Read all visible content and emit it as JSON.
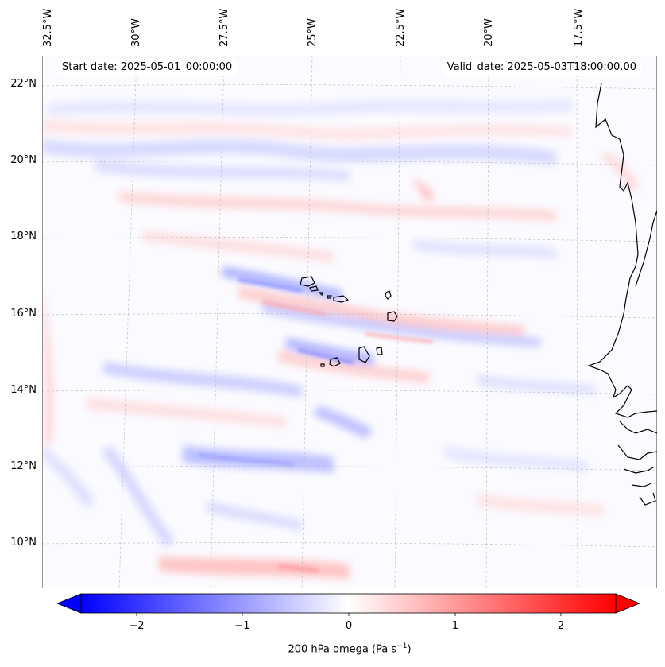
{
  "map": {
    "start_date_text": "Start date: 2025-05-01_00:00:00",
    "valid_date_text": "Valid_date: 2025-05-03T18:00:00.00",
    "lon_labels": [
      "32.5°W",
      "30°W",
      "27.5°W",
      "25°W",
      "22.5°W",
      "20°W",
      "17.5°W"
    ],
    "lat_labels": [
      "22°N",
      "20°N",
      "18°N",
      "16°N",
      "14°N",
      "12°N",
      "10°N"
    ],
    "gridlines": true,
    "variable": "200 hPa omega",
    "colormap": "bwr",
    "colors": {
      "negative": "#0000ff",
      "positive": "#ff0000",
      "zero": "#ffffff",
      "coast": "#000000",
      "grid": "#b8b8b8"
    }
  },
  "colorbar": {
    "ticks": [
      "−2",
      "−1",
      "0",
      "1",
      "2"
    ],
    "tick_values": [
      -2,
      -1,
      0,
      1,
      2
    ],
    "range": [
      -2.6,
      2.6
    ],
    "extend": "both",
    "label_main": "200 hPa omega (Pa s",
    "label_sup": "−1",
    "label_end": ")"
  }
}
